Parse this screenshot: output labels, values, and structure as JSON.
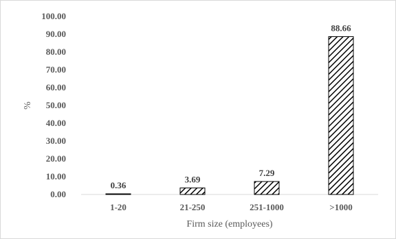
{
  "chart_data": {
    "type": "bar",
    "categories": [
      "1-20",
      "21-250",
      "251-1000",
      ">1000"
    ],
    "values": [
      0.36,
      3.69,
      7.29,
      88.66
    ],
    "data_labels": [
      "0.36",
      "3.69",
      "7.29",
      "88.66"
    ],
    "title": "",
    "xlabel": "Firm size (employees)",
    "ylabel": "%",
    "ylim": [
      0,
      100
    ],
    "yticks": [
      "0.00",
      "10.00",
      "20.00",
      "30.00",
      "40.00",
      "50.00",
      "60.00",
      "70.00",
      "80.00",
      "90.00",
      "100.00"
    ],
    "grid": false,
    "legend": "none",
    "bar_pattern": "diagonal-hatch",
    "colors": {
      "bar_stroke": "#000000",
      "hatch": "#000000",
      "axis": "#d9d9d9",
      "text": "#595959"
    }
  }
}
